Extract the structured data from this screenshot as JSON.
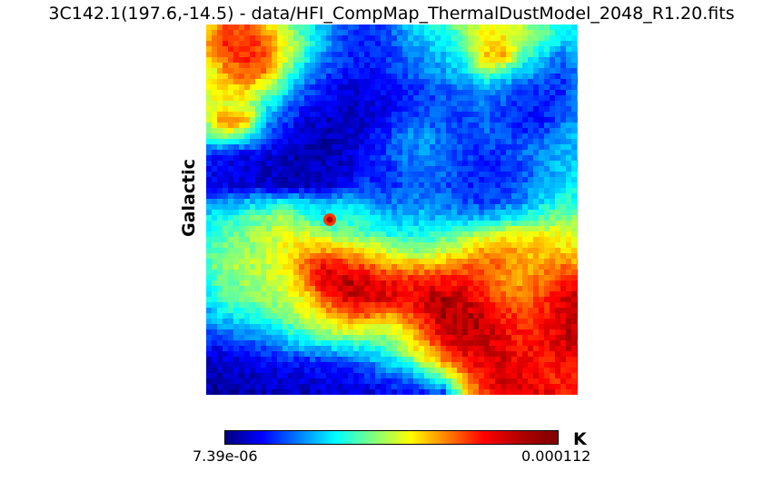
{
  "window": {
    "title": "3C142.1(197.6,-14.5) - data/HFI_CompMap_ThermalDustModel_2048_R1.20.fits"
  },
  "map": {
    "coord_system": "Galactic",
    "colormap": "jet"
  },
  "colorbar": {
    "min_label": "7.39e-06",
    "max_label": "0.000112",
    "unit": "K",
    "stops": [
      "#00007f",
      "#0000ff",
      "#007fff",
      "#00ffff",
      "#7fff7f",
      "#ffff00",
      "#ff7f00",
      "#ff0000",
      "#b00000",
      "#7f0000"
    ]
  },
  "chart_data": {
    "type": "heatmap",
    "title": "3C142.1(197.6,-14.5) - data/HFI_CompMap_ThermalDustModel_2048_R1.20.fits",
    "ylabel": "Galactic",
    "unit": "K",
    "value_range": [
      7.39e-06,
      0.000112
    ],
    "colormap": "jet",
    "grid": false,
    "legend": "colorbar-bottom",
    "field_intensity_grid_normalized": [
      [
        0.62,
        0.78,
        0.8,
        0.65,
        0.55,
        0.4,
        0.3,
        0.2,
        0.16,
        0.2,
        0.3,
        0.38,
        0.42,
        0.55,
        0.6,
        0.62,
        0.55,
        0.48,
        0.4,
        0.35
      ],
      [
        0.7,
        0.85,
        0.82,
        0.78,
        0.6,
        0.45,
        0.3,
        0.18,
        0.15,
        0.18,
        0.25,
        0.32,
        0.35,
        0.45,
        0.62,
        0.66,
        0.55,
        0.45,
        0.35,
        0.38
      ],
      [
        0.65,
        0.8,
        0.85,
        0.8,
        0.6,
        0.4,
        0.25,
        0.16,
        0.16,
        0.18,
        0.22,
        0.28,
        0.32,
        0.4,
        0.68,
        0.7,
        0.45,
        0.32,
        0.22,
        0.32
      ],
      [
        0.55,
        0.72,
        0.8,
        0.75,
        0.5,
        0.3,
        0.2,
        0.15,
        0.12,
        0.15,
        0.2,
        0.24,
        0.28,
        0.32,
        0.5,
        0.4,
        0.3,
        0.25,
        0.18,
        0.26
      ],
      [
        0.62,
        0.65,
        0.68,
        0.55,
        0.38,
        0.22,
        0.14,
        0.1,
        0.1,
        0.12,
        0.16,
        0.18,
        0.22,
        0.24,
        0.28,
        0.24,
        0.2,
        0.18,
        0.16,
        0.3
      ],
      [
        0.56,
        0.6,
        0.58,
        0.4,
        0.25,
        0.15,
        0.1,
        0.08,
        0.08,
        0.1,
        0.15,
        0.18,
        0.2,
        0.22,
        0.24,
        0.2,
        0.16,
        0.15,
        0.18,
        0.32
      ],
      [
        0.55,
        0.78,
        0.72,
        0.3,
        0.18,
        0.1,
        0.07,
        0.06,
        0.08,
        0.12,
        0.2,
        0.22,
        0.2,
        0.18,
        0.22,
        0.18,
        0.14,
        0.15,
        0.22,
        0.3
      ],
      [
        0.4,
        0.5,
        0.4,
        0.22,
        0.12,
        0.07,
        0.06,
        0.06,
        0.1,
        0.16,
        0.26,
        0.28,
        0.24,
        0.2,
        0.22,
        0.2,
        0.18,
        0.22,
        0.28,
        0.32
      ],
      [
        0.18,
        0.14,
        0.12,
        0.1,
        0.07,
        0.05,
        0.05,
        0.07,
        0.12,
        0.18,
        0.24,
        0.26,
        0.24,
        0.18,
        0.16,
        0.18,
        0.22,
        0.28,
        0.3,
        0.34
      ],
      [
        0.12,
        0.1,
        0.08,
        0.07,
        0.06,
        0.05,
        0.06,
        0.08,
        0.14,
        0.16,
        0.22,
        0.24,
        0.22,
        0.18,
        0.15,
        0.16,
        0.2,
        0.26,
        0.32,
        0.36
      ],
      [
        0.14,
        0.1,
        0.09,
        0.08,
        0.07,
        0.06,
        0.08,
        0.12,
        0.18,
        0.16,
        0.2,
        0.22,
        0.2,
        0.17,
        0.15,
        0.18,
        0.22,
        0.3,
        0.35,
        0.38
      ],
      [
        0.24,
        0.26,
        0.3,
        0.34,
        0.36,
        0.32,
        0.28,
        0.32,
        0.3,
        0.24,
        0.24,
        0.26,
        0.24,
        0.2,
        0.18,
        0.22,
        0.26,
        0.34,
        0.4,
        0.42
      ],
      [
        0.35,
        0.4,
        0.45,
        0.48,
        0.55,
        0.45,
        0.38,
        0.4,
        0.38,
        0.32,
        0.3,
        0.32,
        0.3,
        0.28,
        0.3,
        0.34,
        0.4,
        0.46,
        0.5,
        0.48
      ],
      [
        0.38,
        0.45,
        0.5,
        0.55,
        0.6,
        0.58,
        0.52,
        0.48,
        0.45,
        0.4,
        0.38,
        0.4,
        0.45,
        0.5,
        0.55,
        0.6,
        0.64,
        0.62,
        0.6,
        0.56
      ],
      [
        0.42,
        0.5,
        0.52,
        0.55,
        0.62,
        0.7,
        0.72,
        0.7,
        0.66,
        0.58,
        0.52,
        0.5,
        0.56,
        0.62,
        0.7,
        0.74,
        0.7,
        0.68,
        0.66,
        0.62
      ],
      [
        0.45,
        0.52,
        0.55,
        0.56,
        0.62,
        0.78,
        0.88,
        0.85,
        0.8,
        0.74,
        0.72,
        0.7,
        0.74,
        0.78,
        0.8,
        0.75,
        0.7,
        0.72,
        0.76,
        0.74
      ],
      [
        0.4,
        0.48,
        0.52,
        0.55,
        0.6,
        0.72,
        0.92,
        0.95,
        0.92,
        0.88,
        0.85,
        0.86,
        0.88,
        0.85,
        0.8,
        0.74,
        0.72,
        0.78,
        0.84,
        0.88
      ],
      [
        0.35,
        0.44,
        0.48,
        0.52,
        0.56,
        0.64,
        0.8,
        0.9,
        0.92,
        0.9,
        0.88,
        0.92,
        0.95,
        0.92,
        0.86,
        0.8,
        0.76,
        0.82,
        0.9,
        0.94
      ],
      [
        0.28,
        0.36,
        0.4,
        0.44,
        0.5,
        0.58,
        0.68,
        0.76,
        0.8,
        0.72,
        0.78,
        0.88,
        0.96,
        0.95,
        0.92,
        0.85,
        0.8,
        0.84,
        0.92,
        0.96
      ],
      [
        0.22,
        0.26,
        0.28,
        0.34,
        0.4,
        0.48,
        0.55,
        0.6,
        0.58,
        0.55,
        0.64,
        0.8,
        0.92,
        0.96,
        0.94,
        0.88,
        0.84,
        0.86,
        0.92,
        0.95
      ],
      [
        0.12,
        0.14,
        0.18,
        0.22,
        0.28,
        0.32,
        0.34,
        0.38,
        0.4,
        0.44,
        0.56,
        0.7,
        0.85,
        0.92,
        0.92,
        0.9,
        0.86,
        0.88,
        0.9,
        0.92
      ],
      [
        0.07,
        0.08,
        0.1,
        0.12,
        0.14,
        0.14,
        0.16,
        0.2,
        0.24,
        0.3,
        0.4,
        0.56,
        0.72,
        0.85,
        0.9,
        0.92,
        0.88,
        0.84,
        0.88,
        0.9
      ],
      [
        0.05,
        0.05,
        0.06,
        0.07,
        0.08,
        0.09,
        0.1,
        0.12,
        0.14,
        0.18,
        0.24,
        0.32,
        0.44,
        0.72,
        0.86,
        0.92,
        0.9,
        0.86,
        0.84,
        0.86
      ],
      [
        0.04,
        0.04,
        0.05,
        0.05,
        0.06,
        0.06,
        0.07,
        0.08,
        0.09,
        0.1,
        0.12,
        0.14,
        0.16,
        0.58,
        0.82,
        0.9,
        0.92,
        0.9,
        0.85,
        0.84
      ]
    ],
    "hotspot": {
      "label": "",
      "value_normalized": 0.82
    }
  }
}
